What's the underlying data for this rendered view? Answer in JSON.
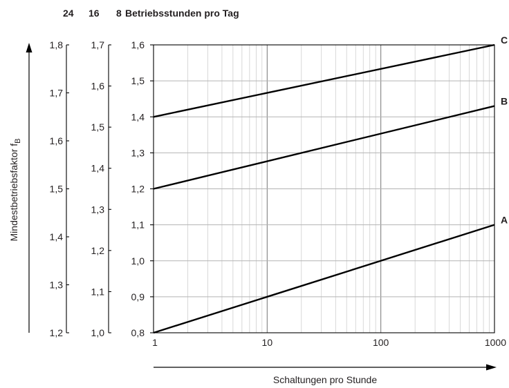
{
  "chart_data": {
    "type": "line",
    "header": {
      "col1": "24",
      "col2": "16",
      "col3_value": "8",
      "col3_title": "Betriebsstunden pro Tag"
    },
    "xlabel": "Schaltungen pro Stunde",
    "ylabel": "Mindestbetriebsfaktor f",
    "ylabel_sub": "B",
    "x_scale": "log",
    "xlim": [
      1,
      1000
    ],
    "x_ticks": [
      "1",
      "10",
      "100",
      "1000"
    ],
    "y_axes": [
      {
        "name": "24",
        "ylim": [
          1.2,
          1.8
        ],
        "ticks": [
          "1,2",
          "1,3",
          "1,4",
          "1,5",
          "1,6",
          "1,7",
          "1,8"
        ]
      },
      {
        "name": "16",
        "ylim": [
          1.0,
          1.7
        ],
        "ticks": [
          "1,0",
          "1,1",
          "1,2",
          "1,3",
          "1,4",
          "1,5",
          "1,6",
          "1,7"
        ]
      },
      {
        "name": "8",
        "ylim": [
          0.8,
          1.6
        ],
        "ticks": [
          "0,8",
          "0,9",
          "1,0",
          "1,1",
          "1,2",
          "1,3",
          "1,4",
          "1,5",
          "1,6"
        ]
      }
    ],
    "grid": true,
    "series": [
      {
        "name": "C",
        "x": [
          1,
          1000
        ],
        "y": [
          1.4,
          1.6
        ]
      },
      {
        "name": "B",
        "x": [
          1,
          1000
        ],
        "y": [
          1.2,
          1.43
        ]
      },
      {
        "name": "A",
        "x": [
          1,
          1000
        ],
        "y": [
          0.8,
          1.1
        ]
      }
    ],
    "colors": {
      "line": "#000000",
      "grid": "#b3b3b3",
      "text": "#231f20"
    }
  }
}
